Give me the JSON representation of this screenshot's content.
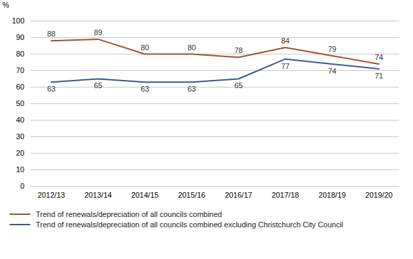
{
  "chart_data": {
    "type": "line",
    "categories": [
      "2012/13",
      "2013/14",
      "2014/15",
      "2015/16",
      "2016/17",
      "2017/18",
      "2018/19",
      "2019/20"
    ],
    "series": [
      {
        "name": "Trend of renewals/depreciation of all councils combined",
        "color": "#a05030",
        "values": [
          88,
          89,
          80,
          80,
          78,
          84,
          79,
          74
        ]
      },
      {
        "name": "Trend of renewals/depreciation of all councils combined excluding Christchurch City Council",
        "color": "#3a5a8c",
        "values": [
          63,
          65,
          63,
          63,
          65,
          77,
          74,
          71
        ]
      }
    ],
    "ylabel": "%",
    "ylim": [
      0,
      100
    ],
    "yticks": [
      0,
      10,
      20,
      30,
      40,
      50,
      60,
      70,
      80,
      90,
      100
    ],
    "grid": true,
    "data_labels": true,
    "legend": "bottom"
  }
}
